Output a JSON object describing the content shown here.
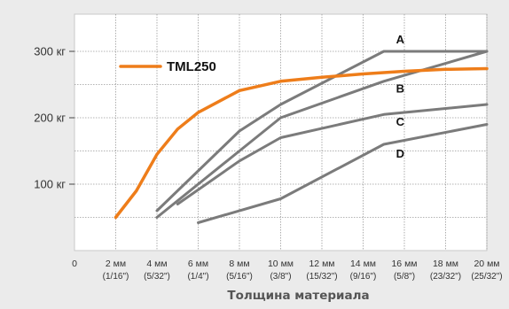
{
  "chart_data": {
    "type": "line",
    "xlabel": "Толщина материала",
    "x_ticks": [
      {
        "x": 0,
        "label": "0",
        "sub": ""
      },
      {
        "x": 2,
        "label": "2 мм",
        "sub": "(1/16\")"
      },
      {
        "x": 4,
        "label": "4 мм",
        "sub": "(5/32\")"
      },
      {
        "x": 6,
        "label": "6 мм",
        "sub": "(1/4\")"
      },
      {
        "x": 8,
        "label": "8 мм",
        "sub": "(5/16\")"
      },
      {
        "x": 10,
        "label": "10 мм",
        "sub": "(3/8\")"
      },
      {
        "x": 12,
        "label": "12 мм",
        "sub": "(15/32\")"
      },
      {
        "x": 14,
        "label": "14 мм",
        "sub": "(9/16\")"
      },
      {
        "x": 16,
        "label": "16 мм",
        "sub": "(5/8\")"
      },
      {
        "x": 18,
        "label": "18 мм",
        "sub": "(23/32\")"
      },
      {
        "x": 20,
        "label": "20 мм",
        "sub": "(25/32\")"
      }
    ],
    "y_ticks": [
      {
        "y": 100,
        "label": "100 кг"
      },
      {
        "y": 200,
        "label": "200 кг"
      },
      {
        "y": 300,
        "label": "300 кг"
      }
    ],
    "xlim": [
      0,
      20
    ],
    "ylim": [
      0,
      350
    ],
    "grid": true,
    "legend_position": "top-left",
    "series": [
      {
        "name": "TML250",
        "color": "#ee7d1a",
        "width": 3.5,
        "points": [
          [
            2,
            50
          ],
          [
            3,
            90
          ],
          [
            4,
            145
          ],
          [
            5,
            183
          ],
          [
            6,
            208
          ],
          [
            8,
            241
          ],
          [
            10,
            255
          ],
          [
            12,
            261
          ],
          [
            14,
            266
          ],
          [
            16,
            270
          ],
          [
            18,
            273
          ],
          [
            20,
            274
          ]
        ]
      },
      {
        "name": "A",
        "color": "#7b7b7b",
        "width": 3,
        "points": [
          [
            4,
            60
          ],
          [
            8,
            180
          ],
          [
            10,
            220
          ],
          [
            15,
            300
          ],
          [
            20,
            300
          ]
        ]
      },
      {
        "name": "B",
        "color": "#7b7b7b",
        "width": 3,
        "points": [
          [
            4,
            50
          ],
          [
            8,
            150
          ],
          [
            10,
            200
          ],
          [
            15,
            255
          ],
          [
            20,
            300
          ]
        ]
      },
      {
        "name": "C",
        "color": "#7b7b7b",
        "width": 3,
        "points": [
          [
            5,
            70
          ],
          [
            8,
            135
          ],
          [
            10,
            170
          ],
          [
            15,
            205
          ],
          [
            20,
            220
          ]
        ]
      },
      {
        "name": "D",
        "color": "#7b7b7b",
        "width": 3,
        "points": [
          [
            6,
            42
          ],
          [
            10,
            78
          ],
          [
            15,
            160
          ],
          [
            20,
            190
          ]
        ]
      }
    ],
    "series_labels": [
      {
        "series": "A",
        "text": "A",
        "x": 15.8,
        "y": 312
      },
      {
        "series": "B",
        "text": "B",
        "x": 15.8,
        "y": 238
      },
      {
        "series": "C",
        "text": "C",
        "x": 15.8,
        "y": 188
      },
      {
        "series": "D",
        "text": "D",
        "x": 15.8,
        "y": 140
      }
    ]
  }
}
